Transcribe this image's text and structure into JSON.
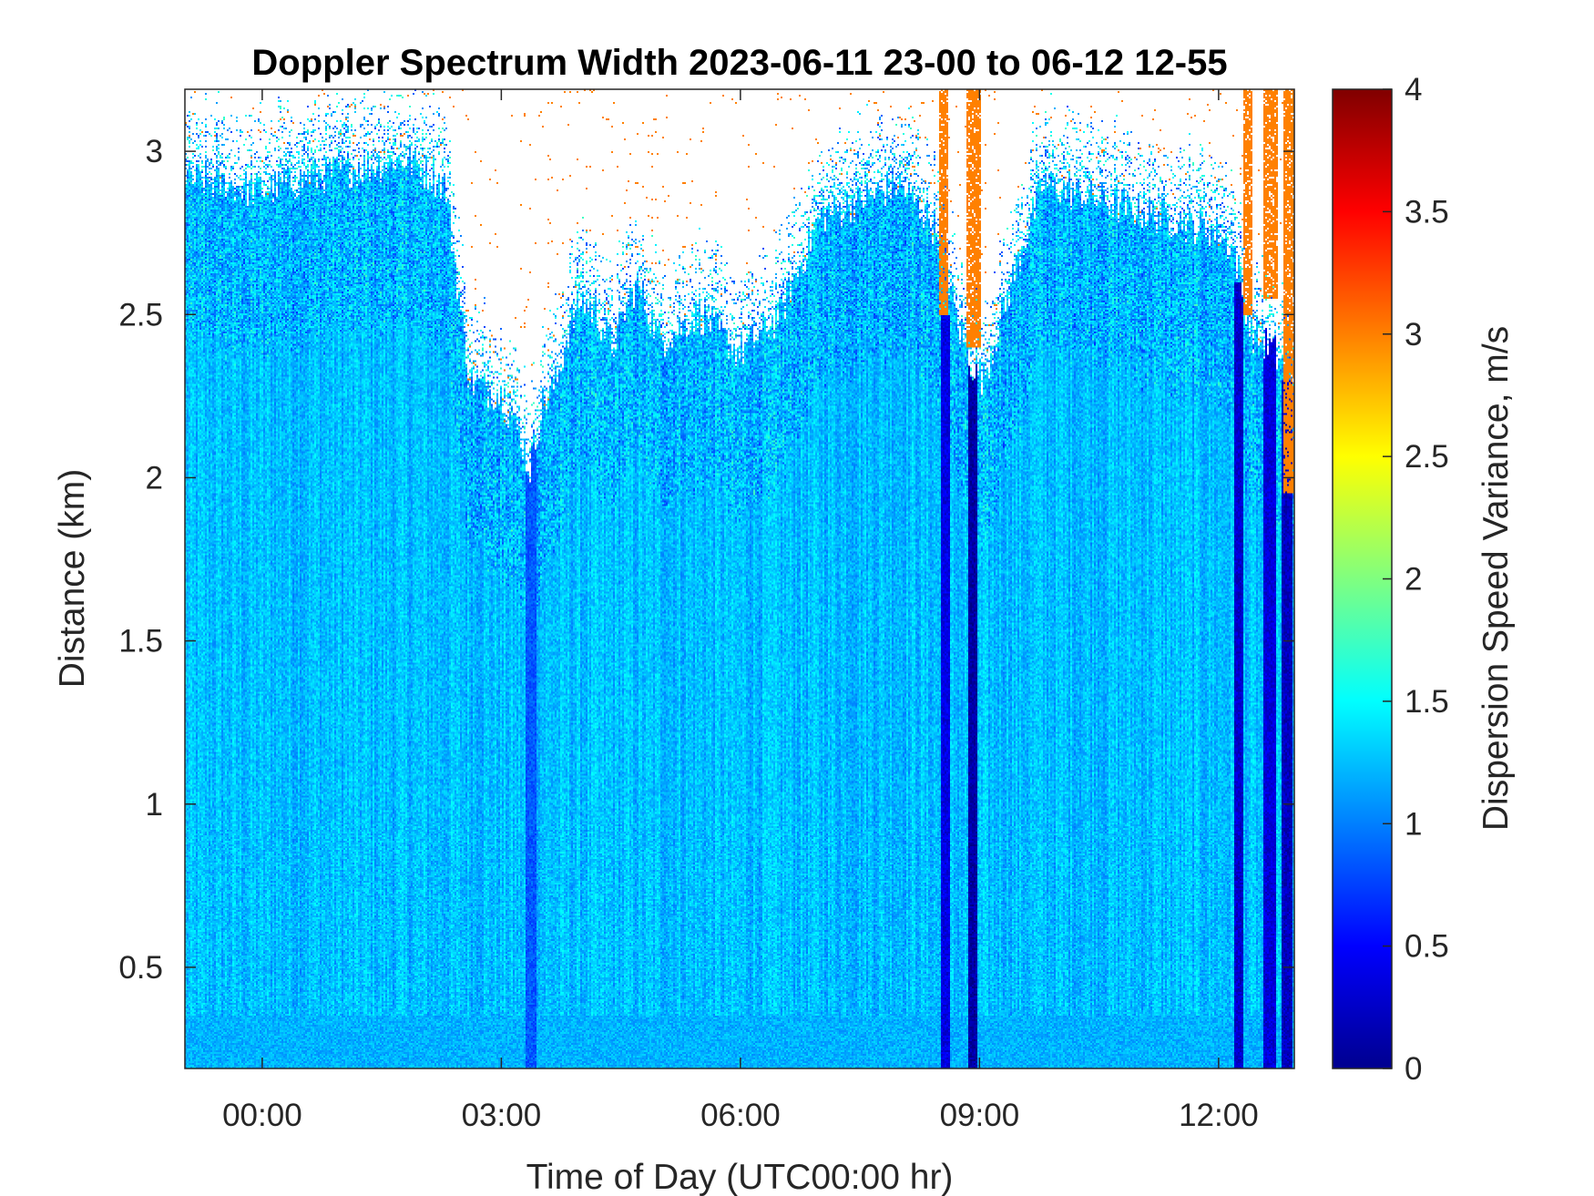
{
  "chart_data": {
    "type": "heatmap",
    "title": "Doppler Spectrum Width 2023-06-11 23-00 to 06-12 12-55",
    "xlabel": "Time of Day (UTC00:00 hr)",
    "ylabel": "Distance (km)",
    "colorbar_label": "Dispersion Speed Variance, m/s",
    "colormap": "jet",
    "x_unit": "hours relative to 2023-06-12 00:00 UTC",
    "xlim": [
      -0.97,
      12.95
    ],
    "ylim": [
      0.19,
      3.19
    ],
    "clim": [
      0,
      4
    ],
    "x_ticks": [
      0,
      3,
      6,
      9,
      12
    ],
    "x_tick_labels": [
      "00:00",
      "03:00",
      "06:00",
      "09:00",
      "12:00"
    ],
    "y_ticks": [
      0.5,
      1,
      1.5,
      2,
      2.5,
      3
    ],
    "y_tick_labels": [
      "0.5",
      "1",
      "1.5",
      "2",
      "2.5",
      "3"
    ],
    "colorbar_ticks": [
      0,
      0.5,
      1,
      1.5,
      2,
      2.5,
      3,
      3.5,
      4
    ],
    "colorbar_tick_labels": [
      "0",
      "0.5",
      "1",
      "1.5",
      "2",
      "2.5",
      "3",
      "3.5",
      "4"
    ],
    "field_summary": {
      "typical_value": 1.25,
      "near_ground_value": 1.2,
      "strong_echo_low_value": 0.3,
      "cloud_top_value": 3.0,
      "no_data_color": "#ffffff"
    },
    "data_top_km": [
      {
        "t": -0.97,
        "km": 2.92
      },
      {
        "t": -0.5,
        "km": 2.9
      },
      {
        "t": 0.0,
        "km": 2.88
      },
      {
        "t": 0.6,
        "km": 2.92
      },
      {
        "t": 1.2,
        "km": 2.95
      },
      {
        "t": 1.8,
        "km": 2.98
      },
      {
        "t": 2.3,
        "km": 2.9
      },
      {
        "t": 2.6,
        "km": 2.3
      },
      {
        "t": 3.0,
        "km": 2.25
      },
      {
        "t": 3.25,
        "km": 2.12
      },
      {
        "t": 3.35,
        "km": 2.02
      },
      {
        "t": 3.5,
        "km": 2.2
      },
      {
        "t": 3.7,
        "km": 2.3
      },
      {
        "t": 3.85,
        "km": 2.45
      },
      {
        "t": 4.0,
        "km": 2.55
      },
      {
        "t": 4.2,
        "km": 2.5
      },
      {
        "t": 4.4,
        "km": 2.4
      },
      {
        "t": 4.7,
        "km": 2.6
      },
      {
        "t": 5.0,
        "km": 2.42
      },
      {
        "t": 5.5,
        "km": 2.5
      },
      {
        "t": 6.0,
        "km": 2.38
      },
      {
        "t": 6.5,
        "km": 2.5
      },
      {
        "t": 7.0,
        "km": 2.8
      },
      {
        "t": 7.5,
        "km": 2.85
      },
      {
        "t": 8.0,
        "km": 2.9
      },
      {
        "t": 8.5,
        "km": 2.75
      },
      {
        "t": 8.75,
        "km": 2.45
      },
      {
        "t": 8.9,
        "km": 2.35
      },
      {
        "t": 9.05,
        "km": 2.3
      },
      {
        "t": 9.4,
        "km": 2.6
      },
      {
        "t": 9.8,
        "km": 2.9
      },
      {
        "t": 10.5,
        "km": 2.85
      },
      {
        "t": 11.3,
        "km": 2.8
      },
      {
        "t": 12.0,
        "km": 2.75
      },
      {
        "t": 12.2,
        "km": 2.7
      },
      {
        "t": 12.4,
        "km": 2.45
      },
      {
        "t": 12.65,
        "km": 2.4
      },
      {
        "t": 12.95,
        "km": 2.3
      }
    ],
    "low_width_bands": [
      {
        "t_start": 3.3,
        "t_end": 3.45,
        "km_max": 2.1,
        "value": 0.85
      },
      {
        "t_start": 8.52,
        "t_end": 8.62,
        "km_max": 2.5,
        "value": 0.4
      },
      {
        "t_start": 8.85,
        "t_end": 8.98,
        "km_max": 2.35,
        "value": 0.15
      },
      {
        "t_start": 12.2,
        "t_end": 12.32,
        "km_max": 2.6,
        "value": 0.3
      },
      {
        "t_start": 12.55,
        "t_end": 12.72,
        "km_max": 2.5,
        "value": 0.35
      },
      {
        "t_start": 12.8,
        "t_end": 12.93,
        "km_max": 2.3,
        "value": 0.25
      }
    ],
    "high_width_streaks": [
      {
        "t_start": 8.5,
        "t_end": 8.6,
        "km_min": 2.5,
        "value": 3.0
      },
      {
        "t_start": 8.84,
        "t_end": 9.02,
        "km_min": 2.4,
        "value": 3.0
      },
      {
        "t_start": 12.3,
        "t_end": 12.42,
        "km_min": 2.5,
        "value": 3.0
      },
      {
        "t_start": 12.55,
        "t_end": 12.75,
        "km_min": 2.55,
        "value": 3.0
      },
      {
        "t_start": 12.82,
        "t_end": 12.95,
        "km_min": 1.95,
        "value": 3.0
      }
    ]
  }
}
